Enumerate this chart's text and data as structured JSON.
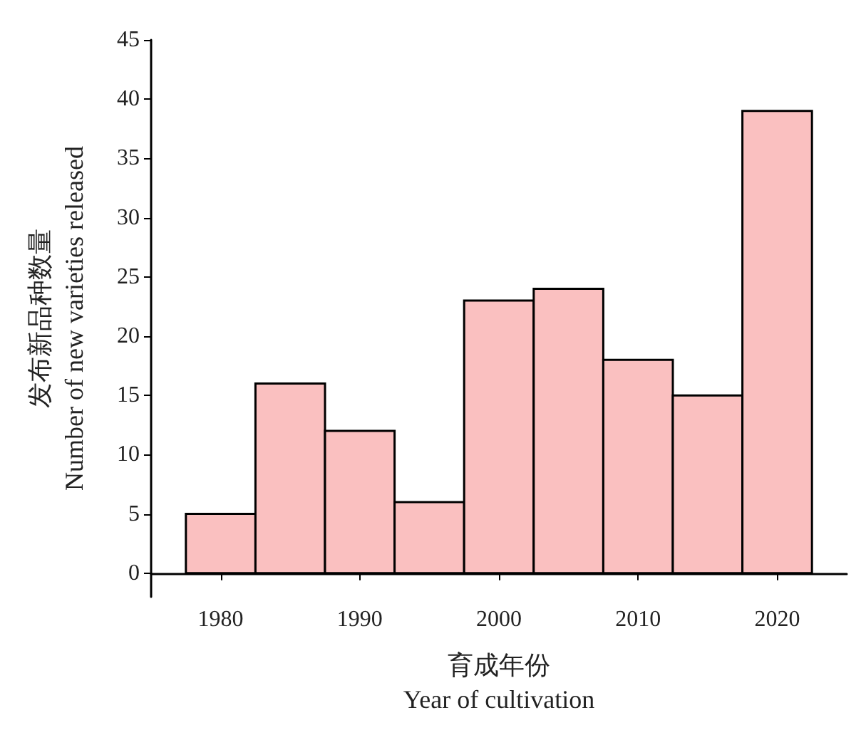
{
  "chart_data": {
    "type": "histogram",
    "xlabel": "育成年份\nYear of cultivation",
    "ylabel": "发布新品种数量\nNumber of new varieties released",
    "bins": [
      1977.5,
      1982.5,
      1987.5,
      1992.5,
      1997.5,
      2002.5,
      2007.5,
      2012.5,
      2017.5,
      2022.5
    ],
    "values": [
      5,
      16,
      12,
      6,
      23,
      24,
      18,
      15,
      39
    ],
    "color": "#fac0c0",
    "xlim": [
      1975,
      2025
    ],
    "xticks": [
      1980,
      1990,
      2000,
      2010,
      2020
    ],
    "ylim": [
      -2,
      45
    ],
    "yticks": [
      0,
      5,
      10,
      15,
      20,
      25,
      30,
      35,
      40,
      45
    ],
    "grid": false
  }
}
